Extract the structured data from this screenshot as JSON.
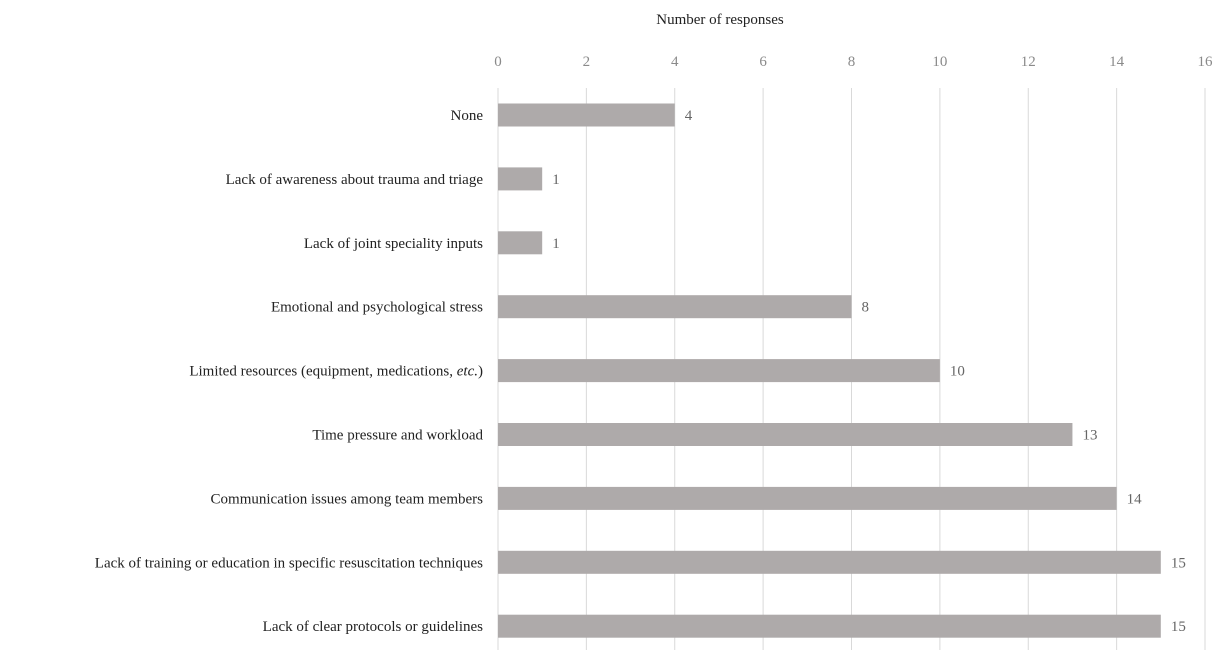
{
  "chart_data": {
    "type": "bar",
    "orientation": "horizontal",
    "xlabel": "Number of responses",
    "xlabel_position": "top",
    "xlim": [
      0,
      16
    ],
    "xticks": [
      0,
      2,
      4,
      6,
      8,
      10,
      12,
      14,
      16
    ],
    "grid": true,
    "bar_color": "#aeaaaa",
    "categories": [
      "None",
      "Lack of awareness about trauma and triage",
      "Lack of joint speciality inputs",
      "Emotional and psychological stress",
      "Limited resources (equipment, medications, etc.)",
      "Time pressure and workload",
      "Communication issues among team members",
      "Lack of training or education in specific resuscitation techniques",
      "Lack of clear protocols or guidelines"
    ],
    "values": [
      4,
      1,
      1,
      8,
      10,
      13,
      14,
      15,
      15
    ]
  }
}
